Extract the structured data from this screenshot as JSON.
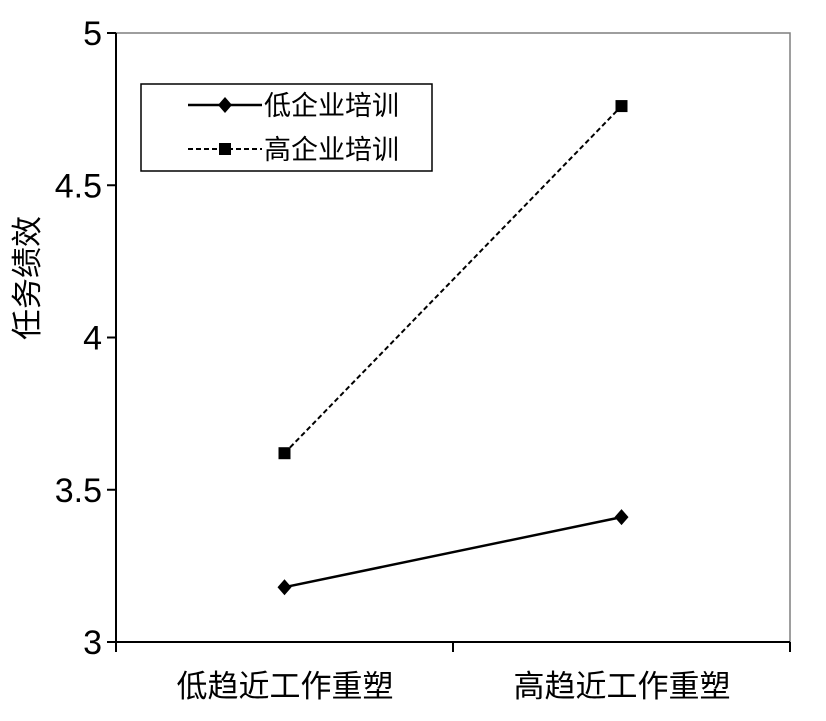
{
  "chart_data": {
    "type": "line",
    "categories": [
      "低趋近工作重塑",
      "高趋近工作重塑"
    ],
    "ylabel": "任务绩效",
    "xlabel": "",
    "ylim": [
      3,
      5
    ],
    "yticks": [
      "3",
      "3.5",
      "4",
      "4.5",
      "5"
    ],
    "grid": false,
    "legend_position": "top-left",
    "series": [
      {
        "name": "低企业培训",
        "values": [
          3.18,
          3.41
        ],
        "line_style": "solid",
        "marker": "diamond",
        "color": "#000000"
      },
      {
        "name": "高企业培训",
        "values": [
          3.62,
          4.76
        ],
        "line_style": "dashed",
        "marker": "square",
        "color": "#000000"
      }
    ]
  }
}
